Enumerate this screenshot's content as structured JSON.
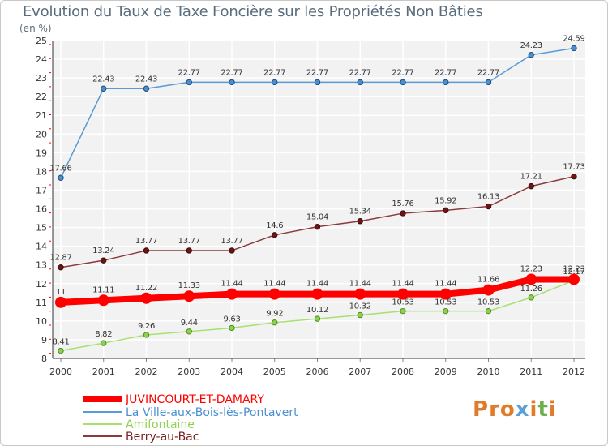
{
  "chart_data": {
    "type": "line",
    "title": "Evolution du Taux de Taxe Foncière sur les Propriétés Non Bâties",
    "unit_label": "(en %)",
    "x": [
      "2000",
      "2001",
      "2002",
      "2003",
      "2004",
      "2005",
      "2006",
      "2007",
      "2008",
      "2009",
      "2010",
      "2011",
      "2012"
    ],
    "ylim": [
      8,
      25
    ],
    "yticks": [
      8,
      9,
      10,
      11,
      12,
      13,
      14,
      15,
      16,
      17,
      18,
      19,
      20,
      21,
      22,
      23,
      24,
      25
    ],
    "grid": true,
    "legend_position": "bottom-left",
    "series": [
      {
        "name": "JUVINCOURT-ET-DAMARY",
        "color": "#ff0000",
        "values": [
          11,
          11.11,
          11.22,
          11.33,
          11.44,
          11.44,
          11.44,
          11.44,
          11.44,
          11.44,
          11.66,
          12.23,
          12.23
        ],
        "labels": [
          "11",
          "11.11",
          "11.22",
          "11.33",
          "11.44",
          "11.44",
          "11.44",
          "11.44",
          "11.44",
          "11.44",
          "11.66",
          "12.23",
          "12.23"
        ]
      },
      {
        "name": "La Ville-aux-Bois-lès-Pontavert",
        "color": "#4a8fd0",
        "values": [
          17.66,
          22.43,
          22.43,
          22.77,
          22.77,
          22.77,
          22.77,
          22.77,
          22.77,
          22.77,
          22.77,
          24.23,
          24.59
        ],
        "labels": [
          "17.66",
          "22.43",
          "22.43",
          "22.77",
          "22.77",
          "22.77",
          "22.77",
          "22.77",
          "22.77",
          "22.77",
          "22.77",
          "24.23",
          "24.59"
        ]
      },
      {
        "name": "Amifontaine",
        "color": "#90d050",
        "values": [
          8.41,
          8.82,
          9.26,
          9.44,
          9.63,
          9.92,
          10.12,
          10.32,
          10.53,
          10.53,
          10.53,
          11.26,
          12.17
        ],
        "labels": [
          "8.41",
          "8.82",
          "9.26",
          "9.44",
          "9.63",
          "9.92",
          "10.12",
          "10.32",
          "10.53",
          "10.53",
          "10.53",
          "11.26",
          "12.17"
        ]
      },
      {
        "name": "Berry-au-Bac",
        "color": "#7a2020",
        "values": [
          12.87,
          13.24,
          13.77,
          13.77,
          13.77,
          14.6,
          15.04,
          15.34,
          15.76,
          15.92,
          16.13,
          17.21,
          17.73
        ],
        "labels": [
          "12.87",
          "13.24",
          "13.77",
          "13.77",
          "13.77",
          "14.6",
          "15.04",
          "15.34",
          "15.76",
          "15.92",
          "16.13",
          "17.21",
          "17.73"
        ]
      }
    ]
  },
  "logo_text": "Proxiti"
}
